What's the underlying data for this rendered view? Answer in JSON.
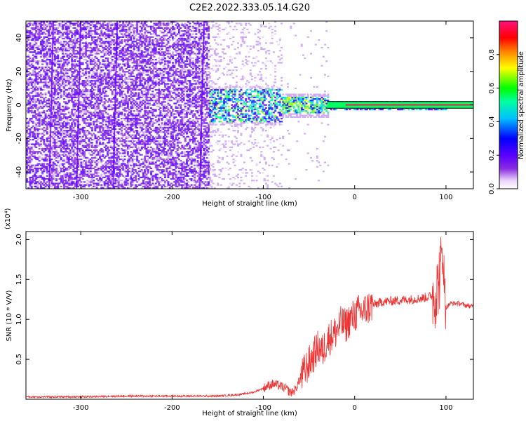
{
  "figure": {
    "title": "C2E2.2022.333.05.14.G20"
  },
  "colors": {
    "trace": "#ee3333",
    "line_band": "#000000",
    "colorbar": [
      "#ffffff",
      "#e9d3fb",
      "#8a2be2",
      "#5a00ff",
      "#0000ff",
      "#00c0ff",
      "#00ffa0",
      "#00ff00",
      "#ffff00",
      "#ff8000",
      "#ff0000",
      "#ff1080"
    ]
  },
  "chart_data": [
    {
      "type": "heatmap",
      "name": "spectrogram",
      "xlabel": "Height of straight line (km)",
      "ylabel": "Frequency (Hz)",
      "xlim": [
        -360,
        130
      ],
      "ylim": [
        -50,
        50
      ],
      "xticks": [
        -300,
        -200,
        -100,
        0,
        100
      ],
      "xtick_labels": [
        "-300",
        "-200",
        "-100",
        "0",
        "100"
      ],
      "yticks": [
        40,
        20,
        0,
        -20,
        -40
      ],
      "ytick_labels": [
        "40",
        "20",
        "0",
        "-20",
        "-40"
      ],
      "line_band": {
        "x_start": -30,
        "x_end": 130,
        "y_lower": -2,
        "y_upper": 2
      },
      "colorbar": {
        "label": "Normalized spectral amplitude",
        "range": [
          0,
          1
        ],
        "ticks": [
          0.0,
          0.2,
          0.4,
          0.6,
          0.8
        ],
        "tick_labels": [
          "0.0",
          "0.2",
          "0.4",
          "0.6",
          "0.8"
        ]
      }
    },
    {
      "type": "line",
      "name": "snr",
      "xlabel": "Height of straight line (km)",
      "ylabel": "SNR (10 * V/V)",
      "multiplier": "(x10⁴)",
      "xlim": [
        -360,
        130
      ],
      "ylim": [
        0,
        2.1
      ],
      "xticks": [
        -300,
        -200,
        -100,
        0,
        100
      ],
      "xtick_labels": [
        "-300",
        "-200",
        "-100",
        "0",
        "100"
      ],
      "yticks": [
        0.5,
        1.0,
        1.5,
        2.0
      ],
      "ytick_labels": [
        "0.5",
        "1.0",
        "1.5",
        "2.0"
      ],
      "series": [
        {
          "x": [
            -360,
            -300,
            -250,
            -200,
            -150,
            -125,
            -110,
            -100,
            -95,
            -90,
            -85,
            -80,
            -75,
            -70,
            -65,
            -60,
            -55,
            -50,
            -45,
            -40,
            -35,
            -30,
            -25,
            -20,
            -15,
            -10,
            -5,
            0,
            5,
            10,
            15,
            20,
            25,
            30,
            40,
            50,
            60,
            70,
            80,
            85,
            90,
            92,
            94,
            96,
            97,
            98,
            100,
            105,
            110,
            115,
            120,
            125,
            130
          ],
          "y": [
            0.03,
            0.03,
            0.04,
            0.04,
            0.04,
            0.06,
            0.09,
            0.14,
            0.17,
            0.19,
            0.18,
            0.16,
            0.13,
            0.08,
            0.12,
            0.25,
            0.35,
            0.45,
            0.55,
            0.65,
            0.6,
            0.75,
            0.8,
            0.85,
            0.95,
            0.92,
            1.0,
            1.05,
            1.1,
            1.1,
            1.15,
            1.18,
            1.2,
            1.22,
            1.23,
            1.24,
            1.25,
            1.26,
            1.28,
            1.3,
            1.35,
            1.5,
            1.6,
            1.85,
            2.0,
            1.3,
            1.15,
            1.2,
            1.2,
            1.2,
            1.18,
            1.17,
            1.16
          ]
        }
      ]
    }
  ]
}
